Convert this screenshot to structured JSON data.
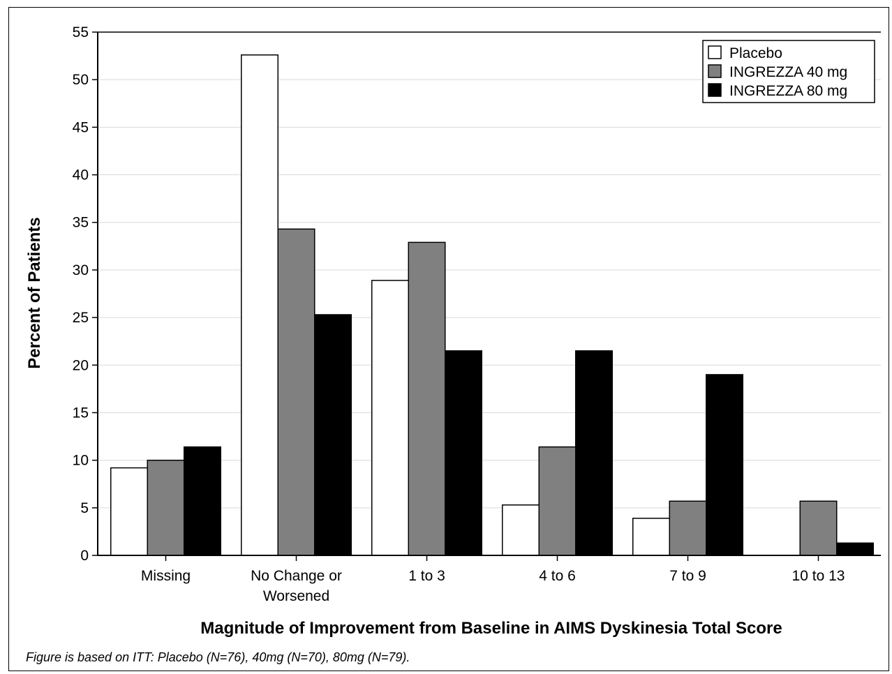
{
  "chart_data": {
    "type": "bar",
    "title": "",
    "xlabel": "Magnitude of Improvement from Baseline in AIMS Dyskinesia Total Score",
    "ylabel": "Percent of Patients",
    "ylim": [
      0,
      55
    ],
    "yticks": [
      0,
      5,
      10,
      15,
      20,
      25,
      30,
      35,
      40,
      45,
      50,
      55
    ],
    "grid": true,
    "legend_position": "top-right",
    "categories": [
      [
        "Missing"
      ],
      [
        "No Change or",
        "Worsened"
      ],
      [
        "1 to 3"
      ],
      [
        "4 to 6"
      ],
      [
        "7 to 9"
      ],
      [
        "10 to 13"
      ]
    ],
    "series": [
      {
        "name": "Placebo",
        "color": "#ffffff",
        "values": [
          9.2,
          52.6,
          28.9,
          5.3,
          3.9,
          0
        ]
      },
      {
        "name": "INGREZZA 40 mg",
        "color": "#808080",
        "values": [
          10.0,
          34.3,
          32.9,
          11.4,
          5.7,
          5.7
        ]
      },
      {
        "name": "INGREZZA 80 mg",
        "color": "#000000",
        "values": [
          11.4,
          25.3,
          21.5,
          21.5,
          19.0,
          1.3
        ]
      }
    ]
  },
  "footnote": "Figure is based on ITT: Placebo (N=76), 40mg (N=70), 80mg (N=79)."
}
